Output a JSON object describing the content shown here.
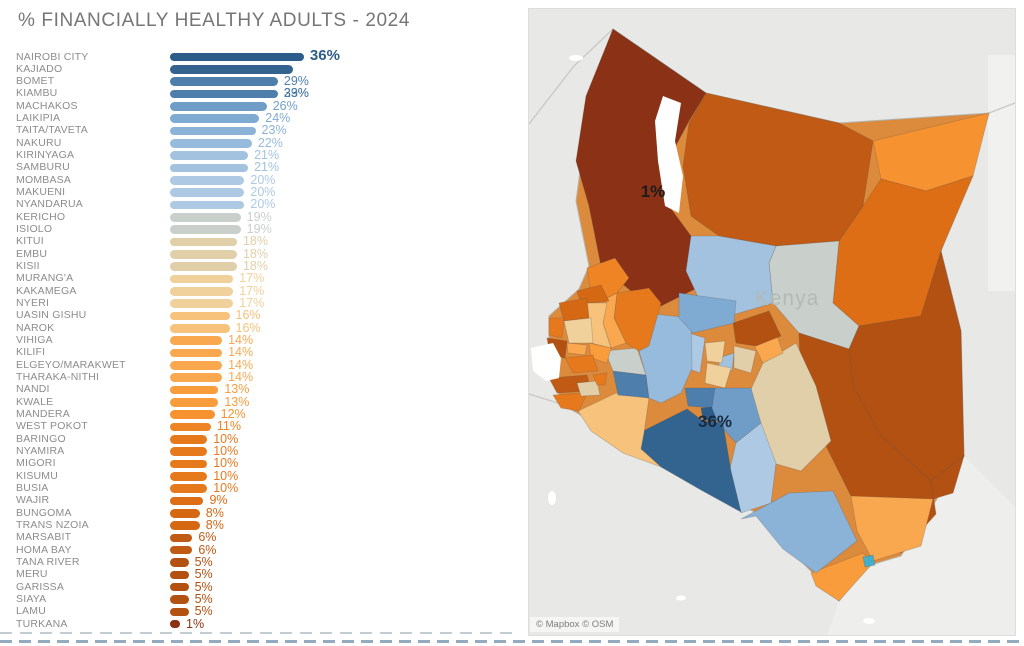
{
  "title": "% FINANCIALLY HEALTHY ADULTS - 2024",
  "chart_data": {
    "type": "bar",
    "orientation": "horizontal",
    "unit": "%",
    "title": "% FINANCIALLY HEALTHY ADULTS - 2024",
    "xlim": [
      0,
      36
    ],
    "categories": [
      "NAIROBI CITY",
      "KAJIADO",
      "BOMET",
      "KIAMBU",
      "MACHAKOS",
      "LAIKIPIA",
      "TAITA/TAVETA",
      "NAKURU",
      "KIRINYAGA",
      "SAMBURU",
      "MOMBASA",
      "MAKUENI",
      "NYANDARUA",
      "KERICHO",
      "ISIOLO",
      "KITUI",
      "EMBU",
      "KISII",
      "MURANG'A",
      "KAKAMEGA",
      "NYERI",
      "UASIN GISHU",
      "NAROK",
      "VIHIGA",
      "KILIFI",
      "ELGEYO/MARAKWET",
      "THARAKA-NITHI",
      "NANDI",
      "KWALE",
      "MANDERA",
      "WEST POKOT",
      "BARINGO",
      "NYAMIRA",
      "MIGORI",
      "KISUMU",
      "BUSIA",
      "WAJIR",
      "BUNGOMA",
      "TRANS NZOIA",
      "MARSABIT",
      "HOMA BAY",
      "TANA RIVER",
      "MERU",
      "GARISSA",
      "SIAYA",
      "LAMU",
      "TURKANA"
    ],
    "values": [
      36,
      33,
      29,
      29,
      26,
      24,
      23,
      22,
      21,
      21,
      20,
      20,
      20,
      19,
      19,
      18,
      18,
      18,
      17,
      17,
      17,
      16,
      16,
      14,
      14,
      14,
      14,
      13,
      13,
      12,
      11,
      10,
      10,
      10,
      10,
      10,
      9,
      8,
      8,
      6,
      6,
      5,
      5,
      5,
      5,
      5,
      1
    ],
    "label_quirk": {
      "county": "KAJIADO",
      "displaced_rows_down": 2
    }
  },
  "palette": {
    "36": "#2b5c8a",
    "33": "#32648f",
    "29": "#4e7fac",
    "26": "#6f9dc8",
    "24": "#7fabd3",
    "23": "#8bb3d8",
    "22": "#97bbdd",
    "21": "#a2c2e0",
    "20": "#aec9e4",
    "19": "#c9cfcb",
    "18": "#e1cfa9",
    "17": "#f0d09b",
    "16": "#f7c27c",
    "14": "#f9a850",
    "13": "#f89c3c",
    "12": "#f69230",
    "11": "#ef8424",
    "10": "#e7791d",
    "9": "#dd6e16",
    "8": "#d46813",
    "6": "#c05a14",
    "5": "#b35112",
    "1": "#8a3116"
  },
  "map": {
    "watermark": "Kenya",
    "attribution": "© Mapbox © OSM",
    "annotation_low": "1%",
    "annotation_high": "36%",
    "background": "#e8e8e6",
    "ocean_tint": "#eeeeec",
    "somalia_tint": "#f1f1ef",
    "water_color": "#ffffff",
    "annotation_low_color": "#1c1c1c",
    "annotation_high_color": "#18293e",
    "watermark_color": "#b3bab6",
    "overrides": {
      "MOMBASA": "#45aec9"
    }
  }
}
